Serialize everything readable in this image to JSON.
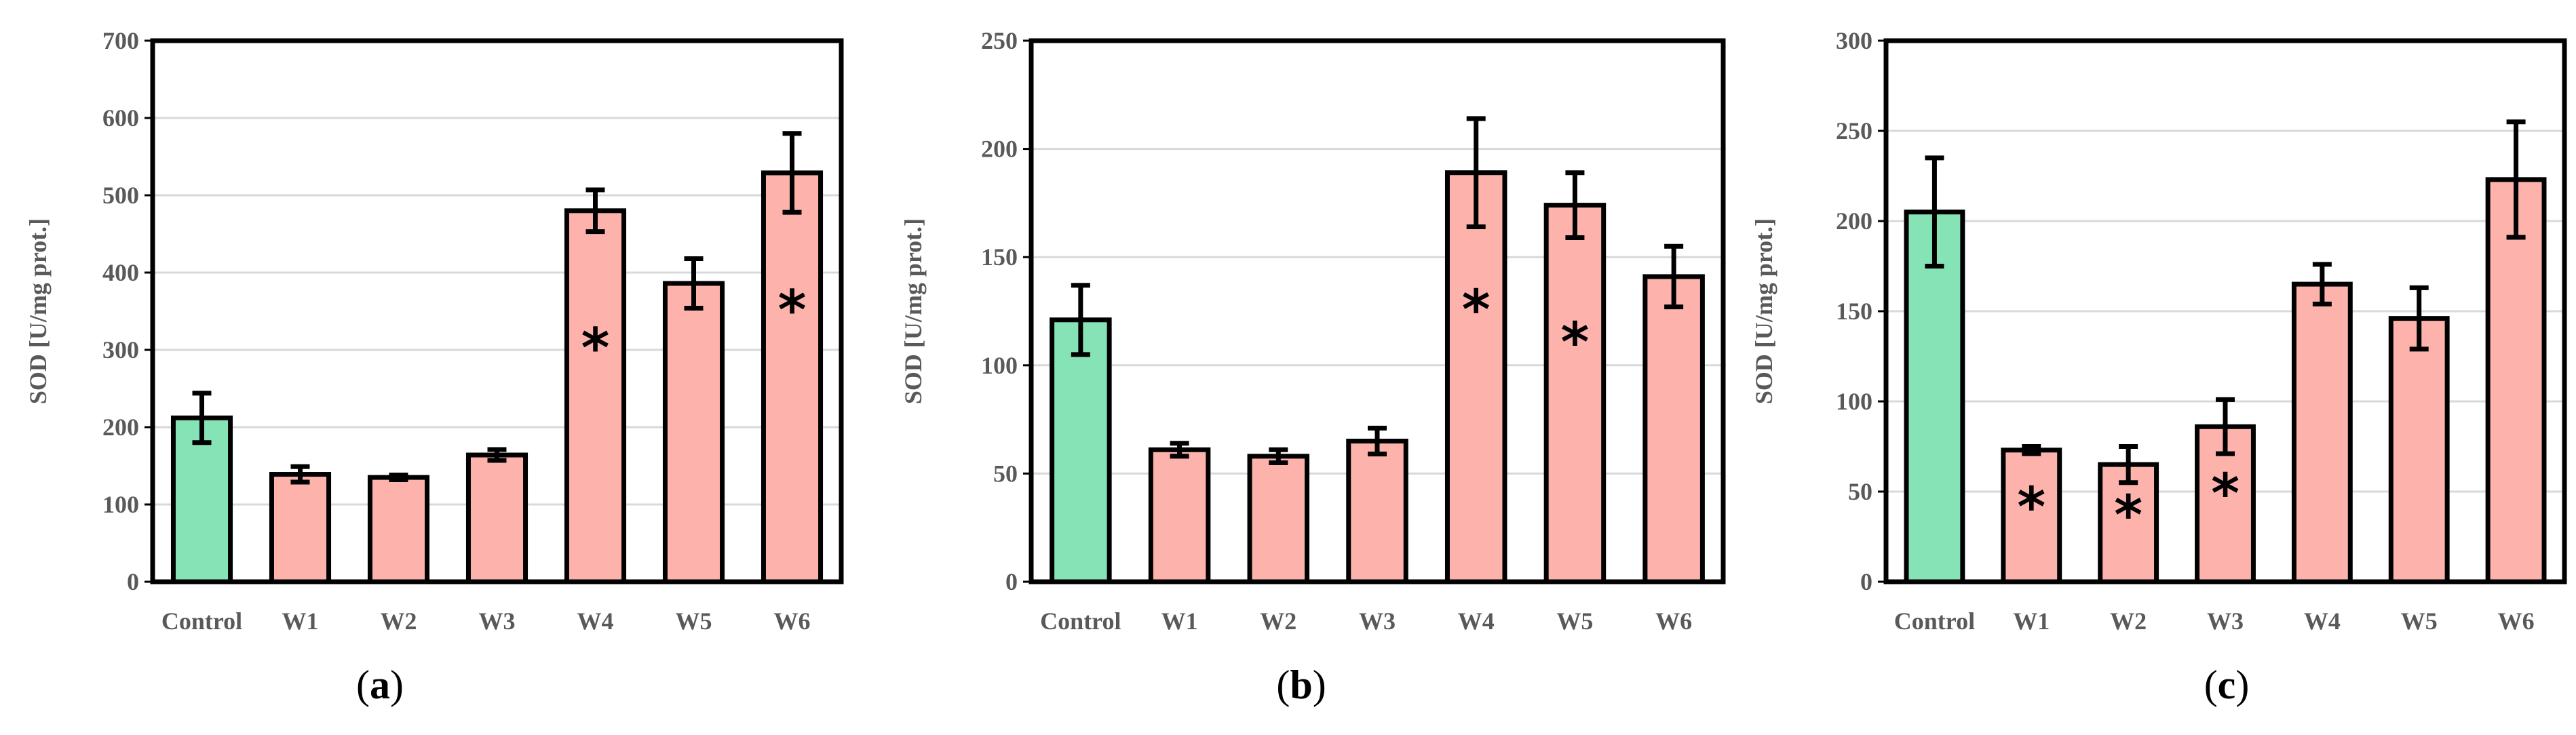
{
  "colors": {
    "control_fill": "#86E3B6",
    "treatment_fill": "#FDB2AC",
    "bar_stroke": "#000000",
    "grid": "#D9D9D9",
    "text": "#595959"
  },
  "chart_data": [
    {
      "type": "bar",
      "caption_letter": "a",
      "ylabel": "SOD [U/mg prot.]",
      "ylim": [
        0,
        700
      ],
      "yticks": [
        0,
        100,
        200,
        300,
        400,
        500,
        600,
        700
      ],
      "grid": true,
      "categories": [
        "Control",
        "W1",
        "W2",
        "W3",
        "W4",
        "W5",
        "W6"
      ],
      "values": [
        212,
        139,
        135,
        164,
        480,
        386,
        529
      ],
      "errors": [
        32,
        10,
        3,
        7,
        27,
        32,
        51
      ],
      "significant": [
        false,
        false,
        false,
        false,
        true,
        false,
        true
      ],
      "significance_symbol": "*"
    },
    {
      "type": "bar",
      "caption_letter": "b",
      "ylabel": "SOD [U/mg prot.]",
      "ylim": [
        0,
        250
      ],
      "yticks": [
        0,
        50,
        100,
        150,
        200,
        250
      ],
      "grid": true,
      "categories": [
        "Control",
        "W1",
        "W2",
        "W3",
        "W4",
        "W5",
        "W6"
      ],
      "values": [
        121,
        61,
        58,
        65,
        189,
        174,
        141
      ],
      "errors": [
        16,
        3,
        3,
        6,
        25,
        15,
        14
      ],
      "significant": [
        false,
        false,
        false,
        false,
        true,
        true,
        false
      ],
      "significance_symbol": "*"
    },
    {
      "type": "bar",
      "caption_letter": "c",
      "ylabel": "SOD [U/mg prot.]",
      "ylim": [
        0,
        300
      ],
      "yticks": [
        0,
        50,
        100,
        150,
        200,
        250,
        300
      ],
      "grid": true,
      "categories": [
        "Control",
        "W1",
        "W2",
        "W3",
        "W4",
        "W5",
        "W6"
      ],
      "values": [
        205,
        73,
        65,
        86,
        165,
        146,
        223
      ],
      "errors": [
        30,
        2,
        10,
        15,
        11,
        17,
        32
      ],
      "significant": [
        false,
        true,
        true,
        true,
        false,
        false,
        false
      ],
      "significance_symbol": "*"
    }
  ]
}
